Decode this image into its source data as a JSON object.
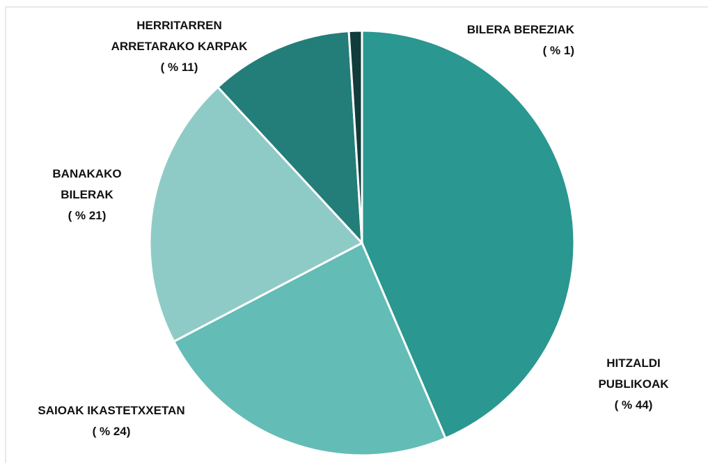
{
  "chart_data": {
    "type": "pie",
    "categories": [
      "HITZALDI PUBLIKOAK",
      "SAIOAK IKASTETXXETAN",
      "BANAKAKO BILERAK",
      "HERRITARREN ARRETARAKO KARPAK",
      "BILERA BEREZIAK"
    ],
    "values": [
      44,
      24,
      21,
      11,
      1
    ],
    "value_labels": [
      "( % 44)",
      "( % 24)",
      "( % 21)",
      "( % 11)",
      "( % 1)"
    ],
    "colors": [
      "#2a9790",
      "#63bcb5",
      "#8fcbc6",
      "#237d78",
      "#113c3a"
    ]
  }
}
